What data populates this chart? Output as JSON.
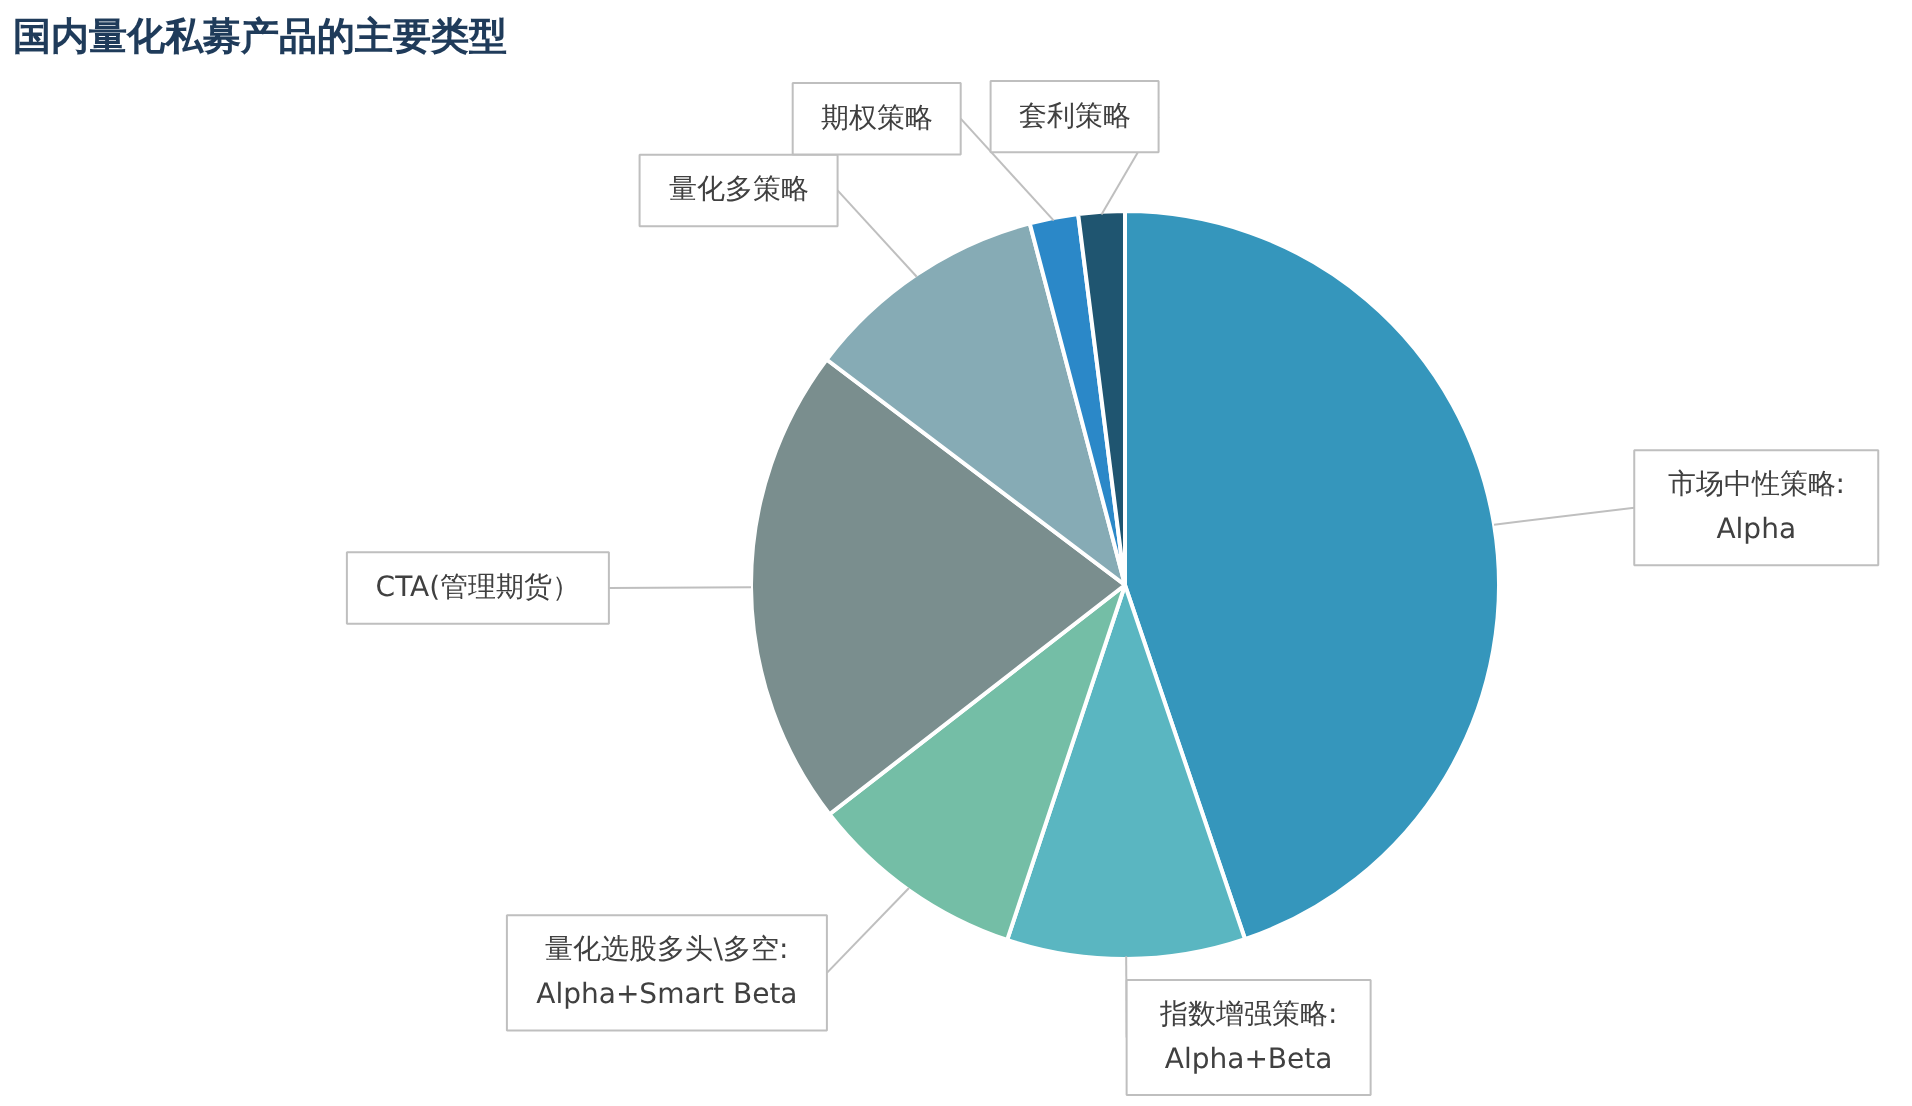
{
  "chart_data": {
    "type": "pie",
    "title": "国内量化私募产品的主要类型",
    "categories": [
      "市场中性策略:\nAlpha",
      "指数增强策略:\nAlpha+Beta",
      "量化选股多头\\多空:\nAlpha+Smart Beta",
      "CTA(管理期货）",
      "量化多策略",
      "期权策略",
      "套利策略"
    ],
    "values": [
      44.8,
      10.3,
      9.4,
      20.8,
      10.6,
      2.1,
      2.0
    ],
    "colors": [
      "#3596bc",
      "#5ab6c1",
      "#74bea6",
      "#7a8e8e",
      "#86abb5",
      "#2b88c8",
      "#1f5570"
    ]
  }
}
